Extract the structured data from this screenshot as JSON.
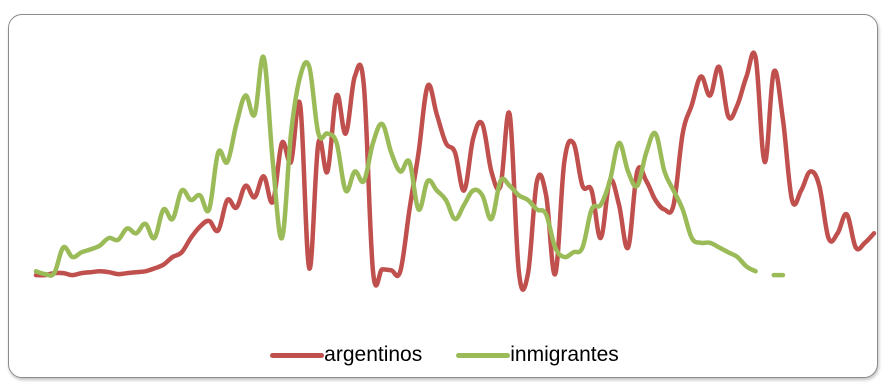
{
  "chart_data": {
    "type": "line",
    "title": "",
    "xlabel": "",
    "ylabel": "",
    "axes_visible": false,
    "grid": false,
    "legend": "bottom",
    "ylim": [
      0,
      240
    ],
    "series": [
      {
        "name": "argentinos",
        "color": "#c0504d",
        "points": [
          [
            0,
            1
          ],
          [
            1,
            1
          ],
          [
            2,
            3
          ],
          [
            3,
            3
          ],
          [
            4,
            1
          ],
          [
            5,
            3
          ],
          [
            6,
            4
          ],
          [
            7,
            5
          ],
          [
            8,
            4
          ],
          [
            9,
            2
          ],
          [
            10,
            3
          ],
          [
            11,
            4
          ],
          [
            12,
            5
          ],
          [
            13,
            8
          ],
          [
            14,
            12
          ],
          [
            15,
            20
          ],
          [
            16,
            25
          ],
          [
            17,
            40
          ],
          [
            18,
            52
          ],
          [
            19,
            58
          ],
          [
            20,
            48
          ],
          [
            21,
            80
          ],
          [
            22,
            72
          ],
          [
            23,
            95
          ],
          [
            24,
            83
          ],
          [
            25,
            105
          ],
          [
            26,
            78
          ],
          [
            27,
            140
          ],
          [
            28,
            120
          ],
          [
            29,
            180
          ],
          [
            30,
            8
          ],
          [
            31,
            140
          ],
          [
            32,
            110
          ],
          [
            33,
            190
          ],
          [
            34,
            150
          ],
          [
            35,
            210
          ],
          [
            36,
            200
          ],
          [
            37,
            5
          ],
          [
            38,
            7
          ],
          [
            39,
            6
          ],
          [
            40,
            5
          ],
          [
            41,
            70
          ],
          [
            42,
            130
          ],
          [
            43,
            200
          ],
          [
            44,
            170
          ],
          [
            45,
            140
          ],
          [
            46,
            130
          ],
          [
            47,
            90
          ],
          [
            48,
            145
          ],
          [
            49,
            160
          ],
          [
            50,
            110
          ],
          [
            51,
            95
          ],
          [
            52,
            170
          ],
          [
            53,
            5
          ],
          [
            54,
            2
          ],
          [
            55,
            100
          ],
          [
            56,
            85
          ],
          [
            57,
            2
          ],
          [
            58,
            120
          ],
          [
            59,
            140
          ],
          [
            60,
            95
          ],
          [
            61,
            90
          ],
          [
            62,
            40
          ],
          [
            63,
            100
          ],
          [
            64,
            75
          ],
          [
            65,
            30
          ],
          [
            66,
            110
          ],
          [
            67,
            100
          ],
          [
            68,
            80
          ],
          [
            69,
            70
          ],
          [
            70,
            75
          ],
          [
            71,
            150
          ],
          [
            72,
            180
          ],
          [
            73,
            210
          ],
          [
            74,
            190
          ],
          [
            75,
            220
          ],
          [
            76,
            168
          ],
          [
            77,
            180
          ],
          [
            78,
            210
          ],
          [
            79,
            230
          ],
          [
            80,
            120
          ],
          [
            81,
            215
          ],
          [
            82,
            165
          ],
          [
            83,
            80
          ],
          [
            84,
            90
          ],
          [
            85,
            110
          ],
          [
            86,
            95
          ],
          [
            87,
            40
          ],
          [
            88,
            45
          ],
          [
            89,
            65
          ],
          [
            90,
            30
          ],
          [
            91,
            35
          ],
          [
            92,
            45
          ]
        ]
      },
      {
        "name": "inmigrantes",
        "color": "#9bbb59",
        "segments": [
          [
            [
              0,
              5
            ],
            [
              1,
              2
            ],
            [
              2,
              3
            ],
            [
              3,
              30
            ],
            [
              4,
              20
            ],
            [
              5,
              25
            ],
            [
              6,
              28
            ],
            [
              7,
              32
            ],
            [
              8,
              40
            ],
            [
              9,
              38
            ],
            [
              10,
              50
            ],
            [
              11,
              45
            ],
            [
              12,
              55
            ],
            [
              13,
              40
            ],
            [
              14,
              70
            ],
            [
              15,
              60
            ],
            [
              16,
              90
            ],
            [
              17,
              80
            ],
            [
              18,
              85
            ],
            [
              19,
              70
            ],
            [
              20,
              130
            ],
            [
              21,
              120
            ],
            [
              22,
              160
            ],
            [
              23,
              190
            ],
            [
              24,
              170
            ],
            [
              25,
              230
            ],
            [
              26,
              120
            ],
            [
              27,
              40
            ],
            [
              28,
              150
            ],
            [
              29,
              210
            ],
            [
              30,
              220
            ],
            [
              31,
              150
            ],
            [
              32,
              150
            ],
            [
              33,
              140
            ],
            [
              34,
              90
            ],
            [
              35,
              110
            ],
            [
              36,
              100
            ],
            [
              37,
              140
            ],
            [
              38,
              160
            ],
            [
              39,
              130
            ],
            [
              40,
              110
            ],
            [
              41,
              120
            ],
            [
              42,
              70
            ],
            [
              43,
              100
            ],
            [
              44,
              90
            ],
            [
              45,
              80
            ],
            [
              46,
              60
            ],
            [
              47,
              75
            ],
            [
              48,
              90
            ],
            [
              49,
              85
            ],
            [
              50,
              60
            ],
            [
              51,
              100
            ],
            [
              52,
              95
            ],
            [
              53,
              85
            ],
            [
              54,
              80
            ],
            [
              55,
              70
            ],
            [
              56,
              65
            ],
            [
              57,
              30
            ],
            [
              58,
              20
            ],
            [
              59,
              25
            ],
            [
              60,
              30
            ],
            [
              61,
              70
            ],
            [
              62,
              75
            ],
            [
              63,
              100
            ],
            [
              64,
              140
            ],
            [
              65,
              110
            ],
            [
              66,
              95
            ],
            [
              67,
              130
            ],
            [
              68,
              150
            ],
            [
              69,
              110
            ],
            [
              70,
              90
            ],
            [
              71,
              70
            ],
            [
              72,
              40
            ],
            [
              73,
              35
            ],
            [
              74,
              35
            ],
            [
              75,
              30
            ],
            [
              76,
              25
            ],
            [
              77,
              20
            ],
            [
              78,
              10
            ],
            [
              79,
              5
            ]
          ],
          [
            [
              81,
              1
            ],
            [
              82,
              1
            ]
          ]
        ]
      }
    ]
  }
}
